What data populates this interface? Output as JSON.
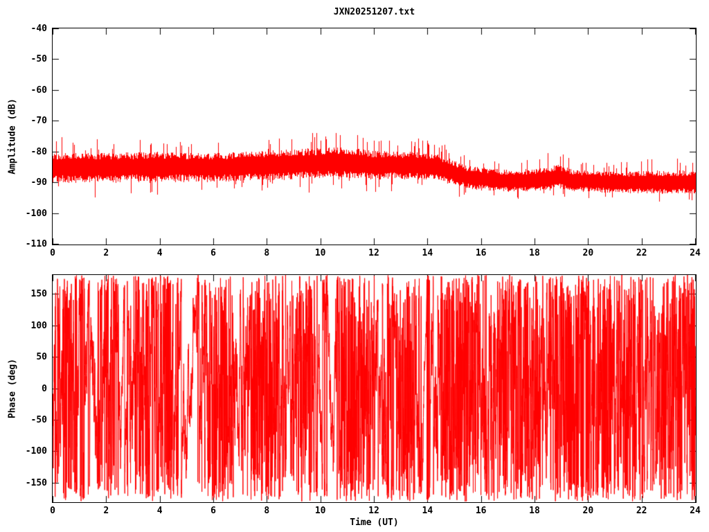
{
  "title": "JXN20251207.txt",
  "colors": {
    "data": "#ff0000",
    "axis": "#000000",
    "background": "#ffffff"
  },
  "chart_data": [
    {
      "id": "amplitude",
      "type": "line",
      "title": "JXN20251207.txt",
      "xlabel": "",
      "ylabel": "Amplitude (dB)",
      "xlim": [
        0,
        24
      ],
      "ylim": [
        -110,
        -40
      ],
      "xticks": [
        0,
        2,
        4,
        6,
        8,
        10,
        12,
        14,
        16,
        18,
        20,
        22,
        24
      ],
      "yticks": [
        -40,
        -50,
        -60,
        -70,
        -80,
        -90,
        -100,
        -110
      ],
      "grid": false,
      "legend": "none",
      "series_color": "#ff0000",
      "description": "Dense red noise band of received VLF signal amplitude vs time; band ~-80 to -91 dB until ~14.5 UT, then drops to ~-87 to -95 dB for the rest of the day with a small rise near 18.7 UT.",
      "envelope": [
        {
          "h": 0.0,
          "mean": -85.2,
          "up": 5.5,
          "dn": 6.0
        },
        {
          "h": 2.0,
          "mean": -85.0,
          "up": 5.4,
          "dn": 6.0
        },
        {
          "h": 4.0,
          "mean": -84.8,
          "up": 5.5,
          "dn": 6.0
        },
        {
          "h": 6.0,
          "mean": -85.0,
          "up": 5.3,
          "dn": 5.8
        },
        {
          "h": 8.0,
          "mean": -84.5,
          "up": 5.6,
          "dn": 5.8
        },
        {
          "h": 9.5,
          "mean": -84.0,
          "up": 5.9,
          "dn": 5.8
        },
        {
          "h": 10.7,
          "mean": -83.6,
          "up": 6.1,
          "dn": 5.8
        },
        {
          "h": 12.0,
          "mean": -84.4,
          "up": 5.5,
          "dn": 5.6
        },
        {
          "h": 13.0,
          "mean": -84.4,
          "up": 5.3,
          "dn": 5.4
        },
        {
          "h": 14.3,
          "mean": -85.0,
          "up": 5.1,
          "dn": 5.0
        },
        {
          "h": 15.5,
          "mean": -88.6,
          "up": 4.7,
          "dn": 4.2
        },
        {
          "h": 17.0,
          "mean": -89.8,
          "up": 4.5,
          "dn": 3.8
        },
        {
          "h": 18.3,
          "mean": -89.6,
          "up": 4.9,
          "dn": 3.8
        },
        {
          "h": 18.8,
          "mean": -88.6,
          "up": 5.3,
          "dn": 3.8
        },
        {
          "h": 19.5,
          "mean": -89.8,
          "up": 4.5,
          "dn": 3.8
        },
        {
          "h": 21.0,
          "mean": -90.3,
          "up": 4.5,
          "dn": 3.8
        },
        {
          "h": 22.5,
          "mean": -90.2,
          "up": 4.7,
          "dn": 4.0
        },
        {
          "h": 24.0,
          "mean": -90.3,
          "up": 4.9,
          "dn": 4.2
        }
      ],
      "noise_seed": 42
    },
    {
      "id": "phase",
      "type": "line",
      "xlabel": "Time (UT)",
      "ylabel": "Phase (deg)",
      "xlim": [
        0,
        24
      ],
      "ylim": [
        -180,
        180
      ],
      "xticks": [
        0,
        2,
        4,
        6,
        8,
        10,
        12,
        14,
        16,
        18,
        20,
        22,
        24
      ],
      "yticks": [
        150,
        100,
        50,
        0,
        -50,
        -100,
        -150
      ],
      "grid": false,
      "legend": "none",
      "series_color": "#ff0000",
      "description": "Wrapped phase (-180..180 deg) vs time; mostly incoherent random walk producing dense full-height red lines, with a clearly coherent upward phase ramp near 14-15 UT.",
      "walk_profile": [
        {
          "h": 0.0,
          "jitter": 45,
          "drift": 0
        },
        {
          "h": 0.5,
          "jitter": 90,
          "drift": 0
        },
        {
          "h": 0.9,
          "jitter": 30,
          "drift": -150
        },
        {
          "h": 1.5,
          "jitter": 25,
          "drift": 100
        },
        {
          "h": 2.1,
          "jitter": 70,
          "drift": 0
        },
        {
          "h": 2.6,
          "jitter": 22,
          "drift": 150
        },
        {
          "h": 3.2,
          "jitter": 85,
          "drift": 0
        },
        {
          "h": 3.7,
          "jitter": 30,
          "drift": -120
        },
        {
          "h": 4.2,
          "jitter": 95,
          "drift": 0
        },
        {
          "h": 4.8,
          "jitter": 28,
          "drift": 0
        },
        {
          "h": 5.3,
          "jitter": 20,
          "drift": 180
        },
        {
          "h": 5.9,
          "jitter": 75,
          "drift": 0
        },
        {
          "h": 6.4,
          "jitter": 110,
          "drift": 0
        },
        {
          "h": 7.0,
          "jitter": 35,
          "drift": -150
        },
        {
          "h": 7.5,
          "jitter": 80,
          "drift": 0
        },
        {
          "h": 8.1,
          "jitter": 100,
          "drift": 0
        },
        {
          "h": 8.7,
          "jitter": 30,
          "drift": 120
        },
        {
          "h": 9.3,
          "jitter": 90,
          "drift": 0
        },
        {
          "h": 9.9,
          "jitter": 28,
          "drift": -100
        },
        {
          "h": 10.4,
          "jitter": 22,
          "drift": 250
        },
        {
          "h": 11.0,
          "jitter": 85,
          "drift": 0
        },
        {
          "h": 11.6,
          "jitter": 100,
          "drift": 0
        },
        {
          "h": 12.2,
          "jitter": 35,
          "drift": 150
        },
        {
          "h": 12.8,
          "jitter": 60,
          "drift": 0
        },
        {
          "h": 13.4,
          "jitter": 95,
          "drift": 0
        },
        {
          "h": 13.9,
          "jitter": 6,
          "drift": 1150
        },
        {
          "h": 15.1,
          "jitter": 110,
          "drift": 0
        },
        {
          "h": 15.6,
          "jitter": 90,
          "drift": 0
        },
        {
          "h": 16.2,
          "jitter": 40,
          "drift": -200
        },
        {
          "h": 16.8,
          "jitter": 95,
          "drift": 0
        },
        {
          "h": 17.4,
          "jitter": 45,
          "drift": 150
        },
        {
          "h": 18.0,
          "jitter": 100,
          "drift": 0
        },
        {
          "h": 18.6,
          "jitter": 50,
          "drift": 0
        },
        {
          "h": 19.2,
          "jitter": 110,
          "drift": 0
        },
        {
          "h": 19.8,
          "jitter": 35,
          "drift": -150
        },
        {
          "h": 20.4,
          "jitter": 90,
          "drift": 0
        },
        {
          "h": 21.0,
          "jitter": 60,
          "drift": 200
        },
        {
          "h": 21.6,
          "jitter": 100,
          "drift": 0
        },
        {
          "h": 22.2,
          "jitter": 45,
          "drift": -150
        },
        {
          "h": 22.8,
          "jitter": 95,
          "drift": 0
        },
        {
          "h": 23.4,
          "jitter": 70,
          "drift": 0
        },
        {
          "h": 24.0,
          "jitter": 80,
          "drift": 0
        }
      ],
      "noise_seed": 1234
    }
  ]
}
